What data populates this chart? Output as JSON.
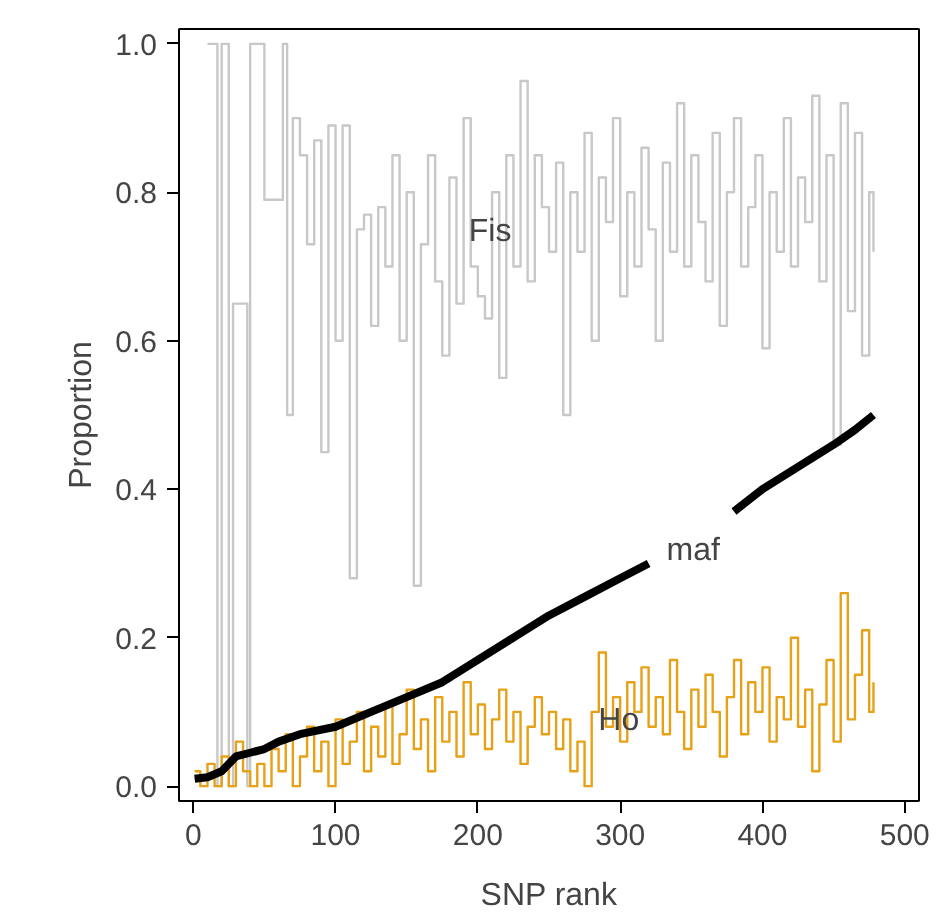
{
  "chart_data": {
    "type": "line",
    "xlabel": "SNP rank",
    "ylabel": "Proportion",
    "xlim": [
      -10,
      510
    ],
    "ylim": [
      -0.02,
      1.02
    ],
    "xticks": [
      0,
      100,
      200,
      300,
      400,
      500
    ],
    "yticks": [
      {
        "value": 0,
        "label": "0.0"
      },
      {
        "value": 0.2,
        "label": "0.2"
      },
      {
        "value": 0.4,
        "label": "0.4"
      },
      {
        "value": 0.6,
        "label": "0.6"
      },
      {
        "value": 0.8,
        "label": "0.8"
      },
      {
        "value": 1,
        "label": "1.0"
      }
    ],
    "grid": false,
    "series": [
      {
        "type": "step",
        "color": "#c8c8c8",
        "x": [
          10,
          15,
          17,
          20,
          25,
          28,
          35,
          38,
          40,
          48,
          50,
          60,
          63,
          66,
          70,
          75,
          80,
          85,
          90,
          95,
          100,
          105,
          110,
          115,
          120,
          125,
          130,
          135,
          140,
          145,
          150,
          155,
          160,
          165,
          170,
          175,
          180,
          185,
          190,
          195,
          200,
          205,
          210,
          215,
          220,
          225,
          230,
          235,
          240,
          245,
          250,
          255,
          260,
          265,
          270,
          275,
          280,
          285,
          290,
          295,
          300,
          305,
          310,
          315,
          320,
          325,
          330,
          335,
          340,
          345,
          350,
          355,
          360,
          365,
          370,
          375,
          380,
          385,
          390,
          395,
          400,
          405,
          410,
          415,
          420,
          425,
          430,
          435,
          440,
          445,
          450,
          455,
          460,
          465,
          470,
          475,
          478
        ],
        "values": [
          1.0,
          1.0,
          0.0,
          1.0,
          0.0,
          0.65,
          0.65,
          0.0,
          1.0,
          1.0,
          0.79,
          0.79,
          1.0,
          0.5,
          0.9,
          0.85,
          0.73,
          0.87,
          0.45,
          0.89,
          0.6,
          0.89,
          0.28,
          0.75,
          0.77,
          0.62,
          0.78,
          0.7,
          0.85,
          0.6,
          0.8,
          0.27,
          0.73,
          0.85,
          0.68,
          0.58,
          0.82,
          0.65,
          0.9,
          0.7,
          0.66,
          0.63,
          0.8,
          0.55,
          0.85,
          0.7,
          0.95,
          0.68,
          0.85,
          0.78,
          0.72,
          0.84,
          0.5,
          0.8,
          0.72,
          0.88,
          0.6,
          0.82,
          0.76,
          0.9,
          0.66,
          0.8,
          0.7,
          0.86,
          0.75,
          0.6,
          0.84,
          0.72,
          0.92,
          0.7,
          0.85,
          0.76,
          0.68,
          0.88,
          0.62,
          0.8,
          0.9,
          0.7,
          0.78,
          0.85,
          0.59,
          0.8,
          0.72,
          0.9,
          0.7,
          0.82,
          0.76,
          0.93,
          0.68,
          0.85,
          0.46,
          0.92,
          0.64,
          0.88,
          0.58,
          0.8,
          0.72
        ]
      },
      {
        "type": "step",
        "color": "#e6a117",
        "x": [
          1,
          5,
          10,
          15,
          20,
          25,
          30,
          35,
          40,
          45,
          50,
          55,
          60,
          65,
          70,
          75,
          80,
          85,
          90,
          95,
          100,
          105,
          110,
          115,
          120,
          125,
          130,
          135,
          140,
          145,
          150,
          155,
          160,
          165,
          170,
          175,
          180,
          185,
          190,
          195,
          200,
          205,
          210,
          215,
          220,
          225,
          230,
          235,
          240,
          245,
          250,
          255,
          260,
          265,
          270,
          275,
          280,
          285,
          290,
          295,
          300,
          305,
          310,
          315,
          320,
          325,
          330,
          335,
          340,
          345,
          350,
          355,
          360,
          365,
          370,
          375,
          380,
          385,
          390,
          395,
          400,
          405,
          410,
          415,
          420,
          425,
          430,
          435,
          440,
          445,
          450,
          455,
          460,
          465,
          470,
          475,
          478
        ],
        "values": [
          0.02,
          0.0,
          0.03,
          0.0,
          0.04,
          0.0,
          0.06,
          0.02,
          0.0,
          0.03,
          0.0,
          0.05,
          0.02,
          0.07,
          0.0,
          0.04,
          0.08,
          0.02,
          0.06,
          0.0,
          0.09,
          0.03,
          0.06,
          0.1,
          0.02,
          0.08,
          0.04,
          0.11,
          0.03,
          0.07,
          0.13,
          0.05,
          0.09,
          0.02,
          0.12,
          0.06,
          0.1,
          0.04,
          0.14,
          0.07,
          0.11,
          0.05,
          0.09,
          0.13,
          0.06,
          0.1,
          0.03,
          0.08,
          0.12,
          0.07,
          0.1,
          0.05,
          0.09,
          0.02,
          0.06,
          0.0,
          0.1,
          0.18,
          0.08,
          0.12,
          0.06,
          0.14,
          0.1,
          0.16,
          0.08,
          0.12,
          0.07,
          0.17,
          0.1,
          0.05,
          0.13,
          0.08,
          0.15,
          0.1,
          0.04,
          0.12,
          0.17,
          0.07,
          0.14,
          0.1,
          0.16,
          0.06,
          0.12,
          0.09,
          0.2,
          0.08,
          0.13,
          0.02,
          0.11,
          0.17,
          0.06,
          0.26,
          0.09,
          0.15,
          0.21,
          0.1,
          0.14
        ]
      },
      {
        "color": "#000000",
        "x": [
          1,
          10,
          20,
          30,
          40,
          50,
          60,
          75,
          100,
          125,
          150,
          175,
          200,
          225,
          250,
          275,
          300,
          320,
          325,
          375,
          380,
          400,
          425,
          450,
          465,
          478
        ],
        "values": [
          0.01,
          0.012,
          0.02,
          0.04,
          0.045,
          0.05,
          0.06,
          0.07,
          0.08,
          0.1,
          0.12,
          0.14,
          0.17,
          0.2,
          0.23,
          0.255,
          0.28,
          0.3,
          null,
          null,
          0.37,
          0.4,
          0.43,
          0.46,
          0.48,
          0.5
        ]
      }
    ],
    "annotations": [
      {
        "text": "Fis",
        "x": 181,
        "y": 0.73
      },
      {
        "text": "maf",
        "x": 320,
        "y": 0.3
      },
      {
        "text": "Ho",
        "x": 272,
        "y": 0.072
      }
    ]
  }
}
